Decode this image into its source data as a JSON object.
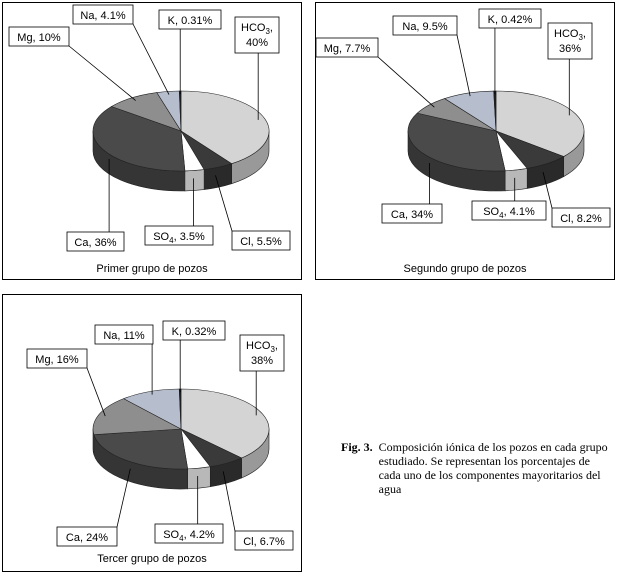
{
  "figure": {
    "caption_label": "Fig. 3.",
    "caption_text": "Composición iónica de los pozos en cada grupo estudiado. Se representan los porcentajes de cada uno de los componentes mayoritarios del agua"
  },
  "colors": {
    "HCO3": "#d4d4d4",
    "Cl": "#3a3a3a",
    "SO4": "#ffffff",
    "Ca": "#4a4a4a",
    "Mg": "#8e8e8e",
    "Na": "#b6bece",
    "K": "#1c1c1c"
  },
  "chart_data": [
    {
      "type": "pie",
      "title": "Primer grupo de pozos",
      "series": [
        {
          "key": "HCO3",
          "name": "HCO3",
          "value": 40,
          "label_main": "HCO",
          "label_sub": "3",
          "label_pct": "40%"
        },
        {
          "key": "Cl",
          "name": "Cl",
          "value": 5.5,
          "label": "Cl, 5.5%"
        },
        {
          "key": "SO4",
          "name": "SO4",
          "value": 3.5,
          "label_main": "SO",
          "label_sub": "4",
          "label_pct": ", 3.5%"
        },
        {
          "key": "Ca",
          "name": "Ca",
          "value": 36,
          "label": "Ca, 36%"
        },
        {
          "key": "Mg",
          "name": "Mg",
          "value": 10,
          "label": "Mg, 10%"
        },
        {
          "key": "Na",
          "name": "Na",
          "value": 4.1,
          "label": "Na, 4.1%"
        },
        {
          "key": "K",
          "name": "K",
          "value": 0.31,
          "label": "K, 0.31%"
        }
      ]
    },
    {
      "type": "pie",
      "title": "Segundo grupo de pozos",
      "series": [
        {
          "key": "HCO3",
          "name": "HCO3",
          "value": 36,
          "label_main": "HCO",
          "label_sub": "3",
          "label_pct": "36%"
        },
        {
          "key": "Cl",
          "name": "Cl",
          "value": 8.2,
          "label": "Cl, 8.2%"
        },
        {
          "key": "SO4",
          "name": "SO4",
          "value": 4.1,
          "label_main": "SO",
          "label_sub": "4",
          "label_pct": ", 4.1%"
        },
        {
          "key": "Ca",
          "name": "Ca",
          "value": 34,
          "label": "Ca, 34%"
        },
        {
          "key": "Mg",
          "name": "Mg",
          "value": 7.7,
          "label": "Mg, 7.7%"
        },
        {
          "key": "Na",
          "name": "Na",
          "value": 9.5,
          "label": "Na, 9.5%"
        },
        {
          "key": "K",
          "name": "K",
          "value": 0.42,
          "label": "K, 0.42%"
        }
      ]
    },
    {
      "type": "pie",
      "title": "Tercer grupo de pozos",
      "series": [
        {
          "key": "HCO3",
          "name": "HCO3",
          "value": 38,
          "label_main": "HCO",
          "label_sub": "3",
          "label_pct": "38%"
        },
        {
          "key": "Cl",
          "name": "Cl",
          "value": 6.7,
          "label": "Cl, 6.7%"
        },
        {
          "key": "SO4",
          "name": "SO4",
          "value": 4.2,
          "label_main": "SO",
          "label_sub": "4",
          "label_pct": ", 4.2%"
        },
        {
          "key": "Ca",
          "name": "Ca",
          "value": 24,
          "label": "Ca, 24%"
        },
        {
          "key": "Mg",
          "name": "Mg",
          "value": 16,
          "label": "Mg, 16%"
        },
        {
          "key": "Na",
          "name": "Na",
          "value": 11,
          "label": "Na, 11%"
        },
        {
          "key": "K",
          "name": "K",
          "value": 0.32,
          "label": "K, 0.32%"
        }
      ]
    }
  ]
}
